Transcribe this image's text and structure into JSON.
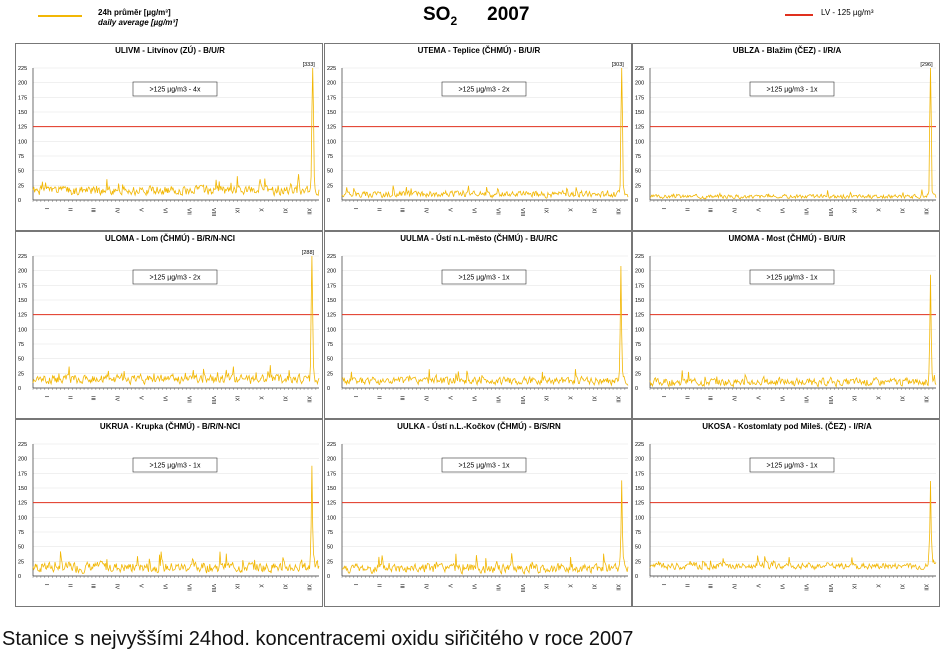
{
  "header": {
    "legend_line1": "24h průměr [µg/m³]",
    "legend_line2": "daily average [µg/m³]",
    "title_main": "SO",
    "title_sub": "2",
    "title_year": "2007",
    "lv_label": "LV   - 125 µg/m³"
  },
  "colors": {
    "series": "#F2B705",
    "limit_line": "#E0301E"
  },
  "caption": "Stanice s nejvyššími 24hod. koncentracemi oxidu siřičitého v roce 2007",
  "chart_data": [
    {
      "type": "line",
      "title": "ULIVM - Litvínov (ZÚ) - B/U/R",
      "limit": 125,
      "exceedance_label": ">125 µg/m3 - 4x",
      "peak_label": "[333]",
      "baseline": 16,
      "noise": 7,
      "peak_day": 356,
      "peak": 333,
      "seed": 1,
      "ylim": [
        0,
        225
      ],
      "yticks": [
        0,
        25,
        50,
        75,
        100,
        125,
        150,
        175,
        200,
        225
      ],
      "months": [
        "I",
        "II",
        "III",
        "IV",
        "V",
        "VI",
        "VII",
        "VIII",
        "IX",
        "X",
        "XI",
        "XII"
      ]
    },
    {
      "type": "line",
      "title": "UTEMA - Teplice (ČHMÚ) - B/U/R",
      "limit": 125,
      "exceedance_label": ">125 µg/m3 - 2x",
      "peak_label": "[303]",
      "baseline": 10,
      "noise": 5,
      "peak_day": 356,
      "peak": 303,
      "seed": 2,
      "ylim": [
        0,
        225
      ],
      "yticks": [
        0,
        25,
        50,
        75,
        100,
        125,
        150,
        175,
        200,
        225
      ],
      "months": [
        "I",
        "II",
        "III",
        "IV",
        "V",
        "VI",
        "VII",
        "VIII",
        "IX",
        "X",
        "XI",
        "XII"
      ]
    },
    {
      "type": "line",
      "title": "UBLZA - Blažim (ČEZ) - I/R/A",
      "limit": 125,
      "exceedance_label": ">125 µg/m3 - 1x",
      "peak_label": "[296]",
      "baseline": 6,
      "noise": 3,
      "peak_day": 357,
      "peak": 296,
      "seed": 3,
      "ylim": [
        0,
        225
      ],
      "yticks": [
        0,
        25,
        50,
        75,
        100,
        125,
        150,
        175,
        200,
        225
      ],
      "months": [
        "I",
        "II",
        "III",
        "IV",
        "V",
        "VI",
        "VII",
        "VIII",
        "IX",
        "X",
        "XI",
        "XII"
      ]
    },
    {
      "type": "line",
      "title": "ULOMA - Lom (ČHMÚ) - B/R/N-NCI",
      "limit": 125,
      "exceedance_label": ">125 µg/m3 - 2x",
      "peak_label": "[288]",
      "baseline": 15,
      "noise": 7,
      "peak_day": 355,
      "peak": 288,
      "seed": 4,
      "ylim": [
        0,
        225
      ],
      "yticks": [
        0,
        25,
        50,
        75,
        100,
        125,
        150,
        175,
        200,
        225
      ],
      "months": [
        "I",
        "II",
        "III",
        "IV",
        "V",
        "VI",
        "VII",
        "VIII",
        "IX",
        "X",
        "XI",
        "XII"
      ]
    },
    {
      "type": "line",
      "title": "UULMA - Ústí n.L-město (ČHMÚ) - B/U/RC",
      "limit": 125,
      "exceedance_label": ">125 µg/m3 - 1x",
      "peak_label": "",
      "baseline": 12,
      "noise": 6,
      "peak_day": 355,
      "peak": 208,
      "seed": 5,
      "ylim": [
        0,
        225
      ],
      "yticks": [
        0,
        25,
        50,
        75,
        100,
        125,
        150,
        175,
        200,
        225
      ],
      "months": [
        "I",
        "II",
        "III",
        "IV",
        "V",
        "VI",
        "VII",
        "VIII",
        "IX",
        "X",
        "XI",
        "XII"
      ]
    },
    {
      "type": "line",
      "title": "UMOMA - Most (ČHMÚ) - B/U/R",
      "limit": 125,
      "exceedance_label": ">125 µg/m3 - 1x",
      "peak_label": "",
      "baseline": 10,
      "noise": 6,
      "peak_day": 357,
      "peak": 193,
      "seed": 6,
      "ylim": [
        0,
        225
      ],
      "yticks": [
        0,
        25,
        50,
        75,
        100,
        125,
        150,
        175,
        200,
        225
      ],
      "months": [
        "I",
        "II",
        "III",
        "IV",
        "V",
        "VI",
        "VII",
        "VIII",
        "IX",
        "X",
        "XI",
        "XII"
      ]
    },
    {
      "type": "line",
      "title": "UKRUA - Krupka (ČHMÚ) - B/R/N-NCI",
      "limit": 125,
      "exceedance_label": ">125 µg/m3 - 1x",
      "peak_label": "",
      "baseline": 15,
      "noise": 8,
      "peak_day": 355,
      "peak": 188,
      "seed": 7,
      "ylim": [
        0,
        225
      ],
      "yticks": [
        0,
        25,
        50,
        75,
        100,
        125,
        150,
        175,
        200,
        225
      ],
      "months": [
        "I",
        "II",
        "III",
        "IV",
        "V",
        "VI",
        "VII",
        "VIII",
        "IX",
        "X",
        "XI",
        "XII"
      ]
    },
    {
      "type": "line",
      "title": "UULKA - Ústí n.L.-Kočkov (ČHMÚ) - B/S/RN",
      "limit": 125,
      "exceedance_label": ">125 µg/m3 - 1x",
      "peak_label": "",
      "baseline": 13,
      "noise": 7,
      "peak_day": 356,
      "peak": 163,
      "seed": 8,
      "ylim": [
        0,
        225
      ],
      "yticks": [
        0,
        25,
        50,
        75,
        100,
        125,
        150,
        175,
        200,
        225
      ],
      "months": [
        "I",
        "II",
        "III",
        "IV",
        "V",
        "VI",
        "VII",
        "VIII",
        "IX",
        "X",
        "XI",
        "XII"
      ]
    },
    {
      "type": "line",
      "title": "UKOSA - Kostomlaty pod Mileš. (ČEZ) - I/R/A",
      "limit": 125,
      "exceedance_label": ">125 µg/m3 - 1x",
      "peak_label": "",
      "baseline": 17,
      "noise": 5,
      "peak_day": 357,
      "peak": 162,
      "seed": 9,
      "ylim": [
        0,
        225
      ],
      "yticks": [
        0,
        25,
        50,
        75,
        100,
        125,
        150,
        175,
        200,
        225
      ],
      "months": [
        "I",
        "II",
        "III",
        "IV",
        "V",
        "VI",
        "VII",
        "VIII",
        "IX",
        "X",
        "XI",
        "XII"
      ]
    }
  ]
}
